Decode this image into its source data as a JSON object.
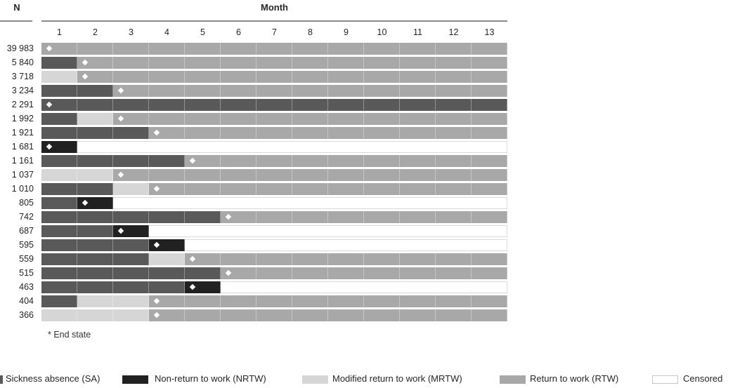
{
  "header": {
    "n_label": "N",
    "month_label": "Month"
  },
  "footnote": "* End state",
  "colors": {
    "SA": "#595959",
    "NRTW": "#212121",
    "MRTW": "#d6d6d6",
    "RTW": "#a8a8a8",
    "CEN": "#ffffff",
    "censored_border": "#dadada",
    "axis_line": "#8c8c8c",
    "marker": "#ffffff"
  },
  "legend": [
    {
      "state": "SA",
      "label": "Sickness absence (SA)"
    },
    {
      "state": "NRTW",
      "label": "Non-return to work (NRTW)"
    },
    {
      "state": "MRTW",
      "label": "Modified return to work (MRTW)"
    },
    {
      "state": "RTW",
      "label": "Return to work (RTW)"
    },
    {
      "state": "CEN",
      "label": "Censored"
    }
  ],
  "chart_data": {
    "type": "bar",
    "subtype": "horizontal-stacked-state-sequence",
    "title": "",
    "xlabel": "Month",
    "ylabel": "N",
    "x_ticks": [
      "1",
      "2",
      "3",
      "4",
      "5",
      "6",
      "7",
      "8",
      "9",
      "10",
      "11",
      "12",
      "13"
    ],
    "xlim": [
      0,
      13
    ],
    "legend_position": "bottom",
    "grid": "month-dividers",
    "marker_meaning": "* End state",
    "states": {
      "SA": "Sickness absence (SA)",
      "NRTW": "Non-return to work (NRTW)",
      "MRTW": "Modified return to work (MRTW)",
      "RTW": "Return to work (RTW)",
      "CEN": "Censored"
    },
    "rows": [
      {
        "n": "39 983",
        "end_state_month": 1,
        "sequence": [
          {
            "state": "RTW",
            "months": 13
          }
        ]
      },
      {
        "n": "5 840",
        "end_state_month": 2,
        "sequence": [
          {
            "state": "SA",
            "months": 1
          },
          {
            "state": "RTW",
            "months": 12
          }
        ]
      },
      {
        "n": "3 718",
        "end_state_month": 2,
        "sequence": [
          {
            "state": "MRTW",
            "months": 1
          },
          {
            "state": "RTW",
            "months": 12
          }
        ]
      },
      {
        "n": "3 234",
        "end_state_month": 3,
        "sequence": [
          {
            "state": "SA",
            "months": 2
          },
          {
            "state": "RTW",
            "months": 11
          }
        ]
      },
      {
        "n": "2 291",
        "end_state_month": 1,
        "sequence": [
          {
            "state": "SA",
            "months": 13
          }
        ]
      },
      {
        "n": "1 992",
        "end_state_month": 3,
        "sequence": [
          {
            "state": "SA",
            "months": 1
          },
          {
            "state": "MRTW",
            "months": 1
          },
          {
            "state": "RTW",
            "months": 11
          }
        ]
      },
      {
        "n": "1 921",
        "end_state_month": 4,
        "sequence": [
          {
            "state": "SA",
            "months": 3
          },
          {
            "state": "RTW",
            "months": 10
          }
        ]
      },
      {
        "n": "1 681",
        "end_state_month": 1,
        "sequence": [
          {
            "state": "NRTW",
            "months": 1
          },
          {
            "state": "CEN",
            "months": 12
          }
        ]
      },
      {
        "n": "1 161",
        "end_state_month": 5,
        "sequence": [
          {
            "state": "SA",
            "months": 4
          },
          {
            "state": "RTW",
            "months": 9
          }
        ]
      },
      {
        "n": "1 037",
        "end_state_month": 3,
        "sequence": [
          {
            "state": "MRTW",
            "months": 2
          },
          {
            "state": "RTW",
            "months": 11
          }
        ]
      },
      {
        "n": "1 010",
        "end_state_month": 4,
        "sequence": [
          {
            "state": "SA",
            "months": 2
          },
          {
            "state": "MRTW",
            "months": 1
          },
          {
            "state": "RTW",
            "months": 10
          }
        ]
      },
      {
        "n": "805",
        "end_state_month": 2,
        "sequence": [
          {
            "state": "SA",
            "months": 1
          },
          {
            "state": "NRTW",
            "months": 1
          },
          {
            "state": "CEN",
            "months": 11
          }
        ]
      },
      {
        "n": "742",
        "end_state_month": 6,
        "sequence": [
          {
            "state": "SA",
            "months": 5
          },
          {
            "state": "RTW",
            "months": 8
          }
        ]
      },
      {
        "n": "687",
        "end_state_month": 3,
        "sequence": [
          {
            "state": "SA",
            "months": 2
          },
          {
            "state": "NRTW",
            "months": 1
          },
          {
            "state": "CEN",
            "months": 10
          }
        ]
      },
      {
        "n": "595",
        "end_state_month": 4,
        "sequence": [
          {
            "state": "SA",
            "months": 3
          },
          {
            "state": "NRTW",
            "months": 1
          },
          {
            "state": "CEN",
            "months": 9
          }
        ]
      },
      {
        "n": "559",
        "end_state_month": 5,
        "sequence": [
          {
            "state": "SA",
            "months": 3
          },
          {
            "state": "MRTW",
            "months": 1
          },
          {
            "state": "RTW",
            "months": 9
          }
        ]
      },
      {
        "n": "515",
        "end_state_month": 6,
        "sequence": [
          {
            "state": "SA",
            "months": 5
          },
          {
            "state": "RTW",
            "months": 8
          }
        ]
      },
      {
        "n": "463",
        "end_state_month": 5,
        "sequence": [
          {
            "state": "SA",
            "months": 4
          },
          {
            "state": "NRTW",
            "months": 1
          },
          {
            "state": "CEN",
            "months": 8
          }
        ]
      },
      {
        "n": "404",
        "end_state_month": 4,
        "sequence": [
          {
            "state": "SA",
            "months": 1
          },
          {
            "state": "MRTW",
            "months": 2
          },
          {
            "state": "RTW",
            "months": 10
          }
        ]
      },
      {
        "n": "366",
        "end_state_month": 4,
        "sequence": [
          {
            "state": "MRTW",
            "months": 3
          },
          {
            "state": "RTW",
            "months": 10
          }
        ]
      }
    ]
  }
}
